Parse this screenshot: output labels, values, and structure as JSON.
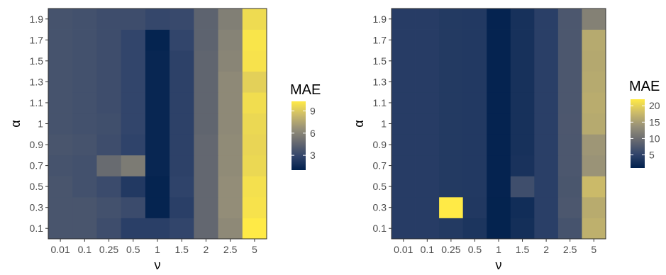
{
  "chart_data": [
    {
      "type": "heatmap",
      "xlabel": "ν",
      "ylabel": "α",
      "x_categories": [
        "0.01",
        "0.1",
        "0.25",
        "0.5",
        "1",
        "1.5",
        "2",
        "2.5",
        "5"
      ],
      "y_categories": [
        "0.1",
        "0.3",
        "0.5",
        "0.7",
        "0.9",
        "1",
        "1.1",
        "1.3",
        "1.5",
        "1.7",
        "1.9"
      ],
      "legend": {
        "title": "MAE",
        "ticks": [
          3,
          6,
          9
        ],
        "range": [
          1,
          10.3
        ],
        "position": "right"
      },
      "colorscale": [
        "#00204D",
        "#31446B",
        "#666970",
        "#958F78",
        "#CBBA69",
        "#FFEA46"
      ],
      "values": [
        [
          3.7,
          3.7,
          3.3,
          2.6,
          2.6,
          2.9,
          4.6,
          6.3,
          10.3
        ],
        [
          3.7,
          3.7,
          3.5,
          3.2,
          1.2,
          2.6,
          4.6,
          6.5,
          10.0
        ],
        [
          3.7,
          3.5,
          3.2,
          2.3,
          1.2,
          2.8,
          4.6,
          6.5,
          9.9
        ],
        [
          3.6,
          3.5,
          4.8,
          5.6,
          1.3,
          2.7,
          4.6,
          6.4,
          9.6
        ],
        [
          3.7,
          3.6,
          3.3,
          2.8,
          1.3,
          2.7,
          4.6,
          6.4,
          9.5
        ],
        [
          3.6,
          3.5,
          3.4,
          2.9,
          1.3,
          2.7,
          4.5,
          6.3,
          9.6
        ],
        [
          3.6,
          3.5,
          3.3,
          2.9,
          1.3,
          2.7,
          4.5,
          6.3,
          9.8
        ],
        [
          3.6,
          3.5,
          3.3,
          2.9,
          1.3,
          2.7,
          4.5,
          6.3,
          9.3
        ],
        [
          3.6,
          3.5,
          3.3,
          2.9,
          1.3,
          2.7,
          4.5,
          6.1,
          10.0
        ],
        [
          3.6,
          3.5,
          3.3,
          2.9,
          1.2,
          2.9,
          4.4,
          6.0,
          10.1
        ],
        [
          3.6,
          3.5,
          3.3,
          3.3,
          3.0,
          3.1,
          4.4,
          5.8,
          9.7
        ]
      ]
    },
    {
      "type": "heatmap",
      "xlabel": "ν",
      "ylabel": "α",
      "x_categories": [
        "0.01",
        "0.1",
        "0.25",
        "0.5",
        "1",
        "1.5",
        "2",
        "2.5",
        "5"
      ],
      "y_categories": [
        "0.1",
        "0.3",
        "0.5",
        "0.7",
        "0.9",
        "1",
        "1.1",
        "1.3",
        "1.5",
        "1.7",
        "1.9"
      ],
      "legend": {
        "title": "MAE",
        "ticks": [
          5,
          10,
          15,
          20
        ],
        "range": [
          1,
          22
        ],
        "position": "right"
      },
      "colorscale": [
        "#00204D",
        "#31446B",
        "#666970",
        "#958F78",
        "#CBBA69",
        "#FFEA46"
      ],
      "values": [
        [
          4.3,
          4.3,
          4.0,
          3.4,
          1.3,
          2.7,
          4.6,
          6.9,
          16.8
        ],
        [
          4.3,
          4.3,
          22.0,
          3.8,
          1.3,
          2.5,
          4.6,
          7.3,
          16.3
        ],
        [
          4.3,
          4.3,
          4.0,
          3.9,
          1.4,
          6.3,
          4.6,
          7.2,
          17.8
        ],
        [
          4.3,
          4.3,
          4.0,
          3.9,
          1.4,
          3.1,
          4.6,
          7.3,
          14.0
        ],
        [
          4.3,
          4.3,
          4.0,
          3.9,
          1.4,
          3.0,
          4.6,
          7.3,
          14.3
        ],
        [
          4.3,
          4.3,
          4.0,
          3.9,
          1.4,
          3.0,
          4.6,
          7.4,
          16.2
        ],
        [
          4.3,
          4.3,
          4.0,
          3.9,
          1.4,
          3.0,
          4.6,
          7.3,
          16.4
        ],
        [
          4.3,
          4.3,
          4.0,
          3.9,
          1.4,
          3.0,
          4.6,
          7.3,
          16.2
        ],
        [
          4.3,
          4.3,
          4.0,
          3.9,
          1.4,
          3.0,
          4.6,
          7.3,
          16.0
        ],
        [
          4.3,
          4.3,
          4.0,
          3.9,
          1.4,
          3.0,
          4.6,
          7.3,
          16.2
        ],
        [
          4.3,
          4.3,
          4.0,
          3.9,
          1.4,
          3.0,
          4.6,
          7.3,
          12.1
        ]
      ]
    }
  ]
}
